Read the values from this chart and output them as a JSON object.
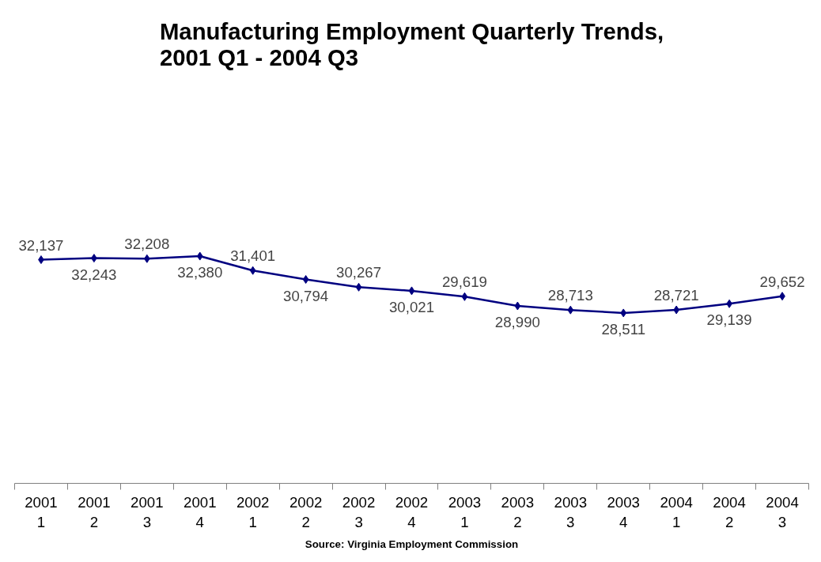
{
  "chart_data": {
    "type": "line",
    "title": "Manufacturing Employment Quarterly Trends, 2001 Q1 - 2004 Q3",
    "categories": [
      "2001\n1",
      "2001\n2",
      "2001\n3",
      "2001\n4",
      "2002\n1",
      "2002\n2",
      "2002\n3",
      "2002\n4",
      "2003\n1",
      "2003\n2",
      "2003\n3",
      "2003\n4",
      "2004\n1",
      "2004\n2",
      "2004\n3"
    ],
    "series": [
      {
        "color": "#000080",
        "values": [
          32137,
          32243,
          32208,
          32380,
          31401,
          30794,
          30267,
          30021,
          29619,
          28990,
          28713,
          28511,
          28721,
          29139,
          29652
        ],
        "value_labels": [
          "32,137",
          "32,243",
          "32,208",
          "32,380",
          "31,401",
          "30,794",
          "30,267",
          "30,021",
          "29,619",
          "28,990",
          "28,713",
          "28,511",
          "28,721",
          "29,139",
          "29,652"
        ]
      }
    ],
    "tick_labels": "x",
    "marker": "diamond",
    "line_style": "solid",
    "grid": false,
    "annotations": [
      "Source: Virginia Employment Commission"
    ]
  }
}
